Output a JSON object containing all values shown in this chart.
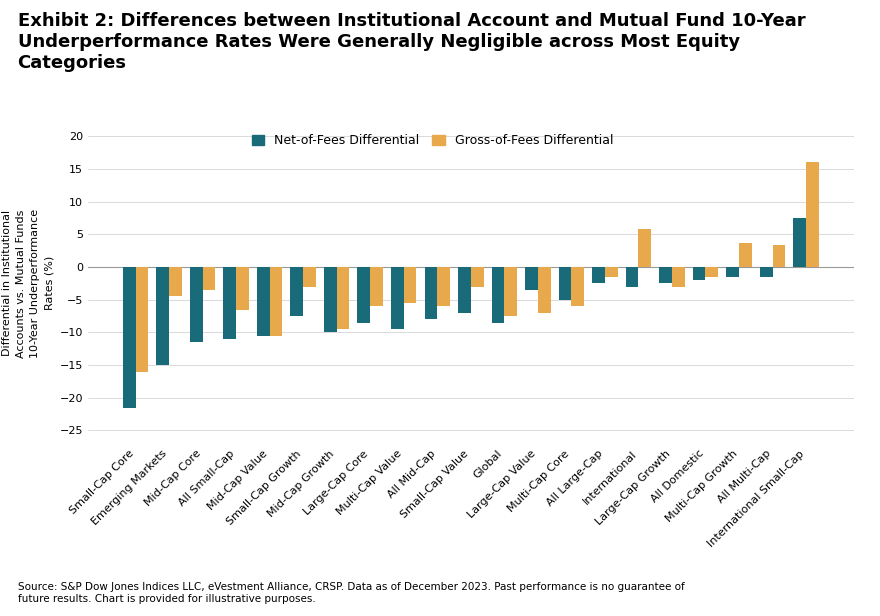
{
  "categories": [
    "Small-Cap Core",
    "Emerging Markets",
    "Mid-Cap Core",
    "All Small-Cap",
    "Mid-Cap Value",
    "Small-Cap Growth",
    "Mid-Cap Growth",
    "Large-Cap Core",
    "Multi-Cap Value",
    "All Mid-Cap",
    "Small-Cap Value",
    "Global",
    "Large-Cap Value",
    "Multi-Cap Core",
    "All Large-Cap",
    "International",
    "Large-Cap Growth",
    "All Domestic",
    "Multi-Cap Growth",
    "All Multi-Cap",
    "International Small-Cap"
  ],
  "net_of_fees": [
    -21.5,
    -15.0,
    -11.5,
    -11.0,
    -10.5,
    -7.5,
    -10.0,
    -8.5,
    -9.5,
    -8.0,
    -7.0,
    -8.5,
    -3.5,
    -5.0,
    -2.5,
    -3.0,
    -2.5,
    -2.0,
    -1.5,
    -1.5,
    7.5
  ],
  "gross_of_fees": [
    -16.0,
    -4.5,
    -3.5,
    -6.5,
    -10.5,
    -3.0,
    -9.5,
    -6.0,
    -5.5,
    -6.0,
    -3.0,
    -7.5,
    -7.0,
    -6.0,
    -1.5,
    5.8,
    -3.0,
    -1.5,
    3.7,
    3.3,
    16.0
  ],
  "net_color": "#1a6b7a",
  "gross_color": "#e8a84c",
  "title_line1": "Exhibit 2: Differences between Institutional Account and Mutual Fund 10-Year",
  "title_line2": "Underperformance Rates Were Generally Negligible across Most Equity",
  "title_line3": "Categories",
  "ylabel": "Differential in Institutional\nAccounts vs. Mutual Funds\n10-Year Underperformance\nRates (%)",
  "ylim": [
    -27,
    22
  ],
  "yticks": [
    -25,
    -20,
    -15,
    -10,
    -5,
    0,
    5,
    10,
    15,
    20
  ],
  "legend_net": "Net-of-Fees Differential",
  "legend_gross": "Gross-of-Fees Differential",
  "source_text": "Source: S&P Dow Jones Indices LLC, eVestment Alliance, CRSP. Data as of December 2023. Past performance is no guarantee of\nfuture results. Chart is provided for illustrative purposes.",
  "background_color": "#ffffff",
  "title_fontsize": 13,
  "axis_fontsize": 8,
  "tick_fontsize": 8
}
